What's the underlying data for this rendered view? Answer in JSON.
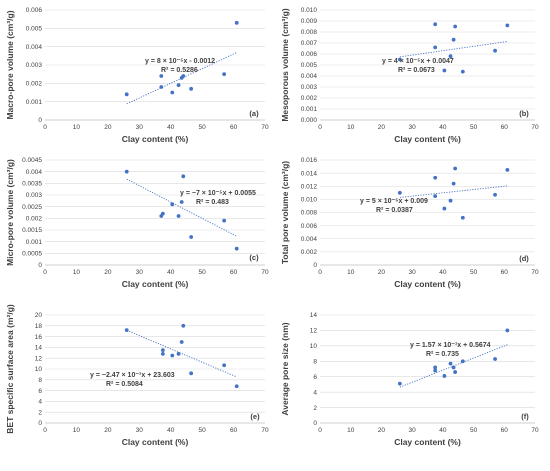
{
  "chart_data": [
    {
      "type": "scatter",
      "panel_label": "(a)",
      "xlabel": "Clay content (%)",
      "ylabel": "Macro-pore volume (cm³/g)",
      "xlim": [
        0,
        70
      ],
      "ylim": [
        0,
        0.006
      ],
      "xticks": [
        "0",
        "10",
        "20",
        "30",
        "40",
        "50",
        "60",
        "70"
      ],
      "yticks": [
        "0",
        "0.001",
        "0.002",
        "0.003",
        "0.004",
        "0.005",
        "0.006"
      ],
      "x": [
        26,
        37,
        37,
        40.5,
        42.5,
        43.5,
        44,
        46.5,
        57,
        61
      ],
      "y": [
        0.0014,
        0.0024,
        0.0018,
        0.0015,
        0.0019,
        0.0023,
        0.0024,
        0.0017,
        0.0025,
        0.0053
      ],
      "trendline": {
        "slope": 8e-05,
        "intercept": -0.0012
      },
      "equation": "y = 8 × 10⁻⁵x - 0.0012",
      "r2": "R² = 0.5286"
    },
    {
      "type": "scatter",
      "panel_label": "(b)",
      "xlabel": "Clay content (%)",
      "ylabel": "Mesoporous volume (cm³/g)",
      "xlim": [
        0,
        70
      ],
      "ylim": [
        0,
        0.01
      ],
      "xticks": [
        "0",
        "10",
        "20",
        "30",
        "40",
        "50",
        "60",
        "70"
      ],
      "yticks": [
        "0.000",
        "0.001",
        "0.002",
        "0.003",
        "0.004",
        "0.005",
        "0.006",
        "0.007",
        "0.008",
        "0.009",
        "0.010"
      ],
      "x": [
        26,
        37.5,
        37.5,
        40.5,
        42.5,
        43.5,
        44,
        46.5,
        57,
        61
      ],
      "y": [
        0.0055,
        0.0087,
        0.0066,
        0.0045,
        0.0058,
        0.0073,
        0.0085,
        0.0044,
        0.0063,
        0.0086
      ],
      "trendline": {
        "slope": 4e-05,
        "intercept": 0.0047
      },
      "equation": "y = 4 × 10⁻⁵x + 0.0047",
      "r2": "R² = 0.0673"
    },
    {
      "type": "scatter",
      "panel_label": "(c)",
      "xlabel": "Clay content (%)",
      "ylabel": "Micro-pore volume (cm³/g)",
      "xlim": [
        0,
        70
      ],
      "ylim": [
        0,
        0.0045
      ],
      "xticks": [
        "0",
        "10",
        "20",
        "30",
        "40",
        "50",
        "60",
        "70"
      ],
      "yticks": [
        "0",
        "0.0005",
        "0.001",
        "0.0015",
        "0.002",
        "0.0025",
        "0.003",
        "0.0035",
        "0.004",
        "0.0045"
      ],
      "x": [
        26,
        37,
        37.5,
        40.5,
        42.5,
        43.5,
        44,
        46.5,
        57,
        61
      ],
      "y": [
        0.004,
        0.0021,
        0.0022,
        0.0026,
        0.0021,
        0.0027,
        0.0038,
        0.0012,
        0.0019,
        0.0007
      ],
      "trendline": {
        "slope": -7e-05,
        "intercept": 0.0055
      },
      "equation": "y = −7 × 10⁻⁵x + 0.0055",
      "r2": "R² = 0.483"
    },
    {
      "type": "scatter",
      "panel_label": "(d)",
      "xlabel": "Clay content (%)",
      "ylabel": "Total pore volume (cm³/g)",
      "xlim": [
        0,
        70
      ],
      "ylim": [
        0,
        0.016
      ],
      "xticks": [
        "0",
        "10",
        "20",
        "30",
        "40",
        "50",
        "60",
        "70"
      ],
      "yticks": [
        "0",
        "0.002",
        "0.004",
        "0.006",
        "0.008",
        "0.010",
        "0.012",
        "0.014",
        "0.016"
      ],
      "x": [
        26,
        37.5,
        37.5,
        40.5,
        42.5,
        43.5,
        44,
        46.5,
        57,
        61
      ],
      "y": [
        0.011,
        0.0133,
        0.0105,
        0.0086,
        0.0098,
        0.0124,
        0.0147,
        0.0072,
        0.0107,
        0.0145
      ],
      "trendline": {
        "slope": 5e-05,
        "intercept": 0.009
      },
      "equation": "y = 5 × 10⁻⁵x + 0.009",
      "r2": "R² = 0.0387"
    },
    {
      "type": "scatter",
      "panel_label": "(e)",
      "xlabel": "Clay content (%)",
      "ylabel": "BET specific surface area (m²/g)",
      "xlim": [
        0,
        70
      ],
      "ylim": [
        0,
        20
      ],
      "xticks": [
        "0",
        "10",
        "20",
        "30",
        "40",
        "50",
        "60",
        "70"
      ],
      "yticks": [
        "0",
        "2",
        "4",
        "6",
        "8",
        "10",
        "12",
        "14",
        "16",
        "18",
        "20"
      ],
      "x": [
        26,
        37.5,
        37.5,
        40.5,
        42.5,
        43.5,
        44,
        46.5,
        57,
        61
      ],
      "y": [
        17.2,
        13.5,
        12.8,
        12.5,
        12.8,
        15,
        18,
        9.2,
        10.7,
        6.8
      ],
      "trendline": {
        "slope": -0.247,
        "intercept": 23.603
      },
      "equation": "y = −2.47 × 10⁻¹x + 23.603",
      "r2": "R² = 0.5084"
    },
    {
      "type": "scatter",
      "panel_label": "(f)",
      "xlabel": "Clay content (%)",
      "ylabel": "Average pore size (nm)",
      "xlim": [
        0,
        70
      ],
      "ylim": [
        0,
        14
      ],
      "xticks": [
        "0",
        "10",
        "20",
        "30",
        "40",
        "50",
        "60",
        "70"
      ],
      "yticks": [
        "0",
        "2",
        "4",
        "6",
        "8",
        "10",
        "12",
        "14"
      ],
      "x": [
        26,
        37.5,
        37.5,
        40.5,
        42.5,
        43.5,
        44,
        46.5,
        57,
        61
      ],
      "y": [
        5.1,
        6.8,
        7.2,
        6.1,
        7.7,
        7.2,
        6.6,
        8,
        8.3,
        12
      ],
      "trendline": {
        "slope": 0.157,
        "intercept": 0.5674
      },
      "equation": "y = 1.57 × 10⁻¹x + 0.5674",
      "r2": "R² = 0.735"
    }
  ],
  "colors": {
    "marker": "#4472c4",
    "trendline": "#4472c4",
    "grid": "#d9d9d9",
    "text": "#404040"
  }
}
